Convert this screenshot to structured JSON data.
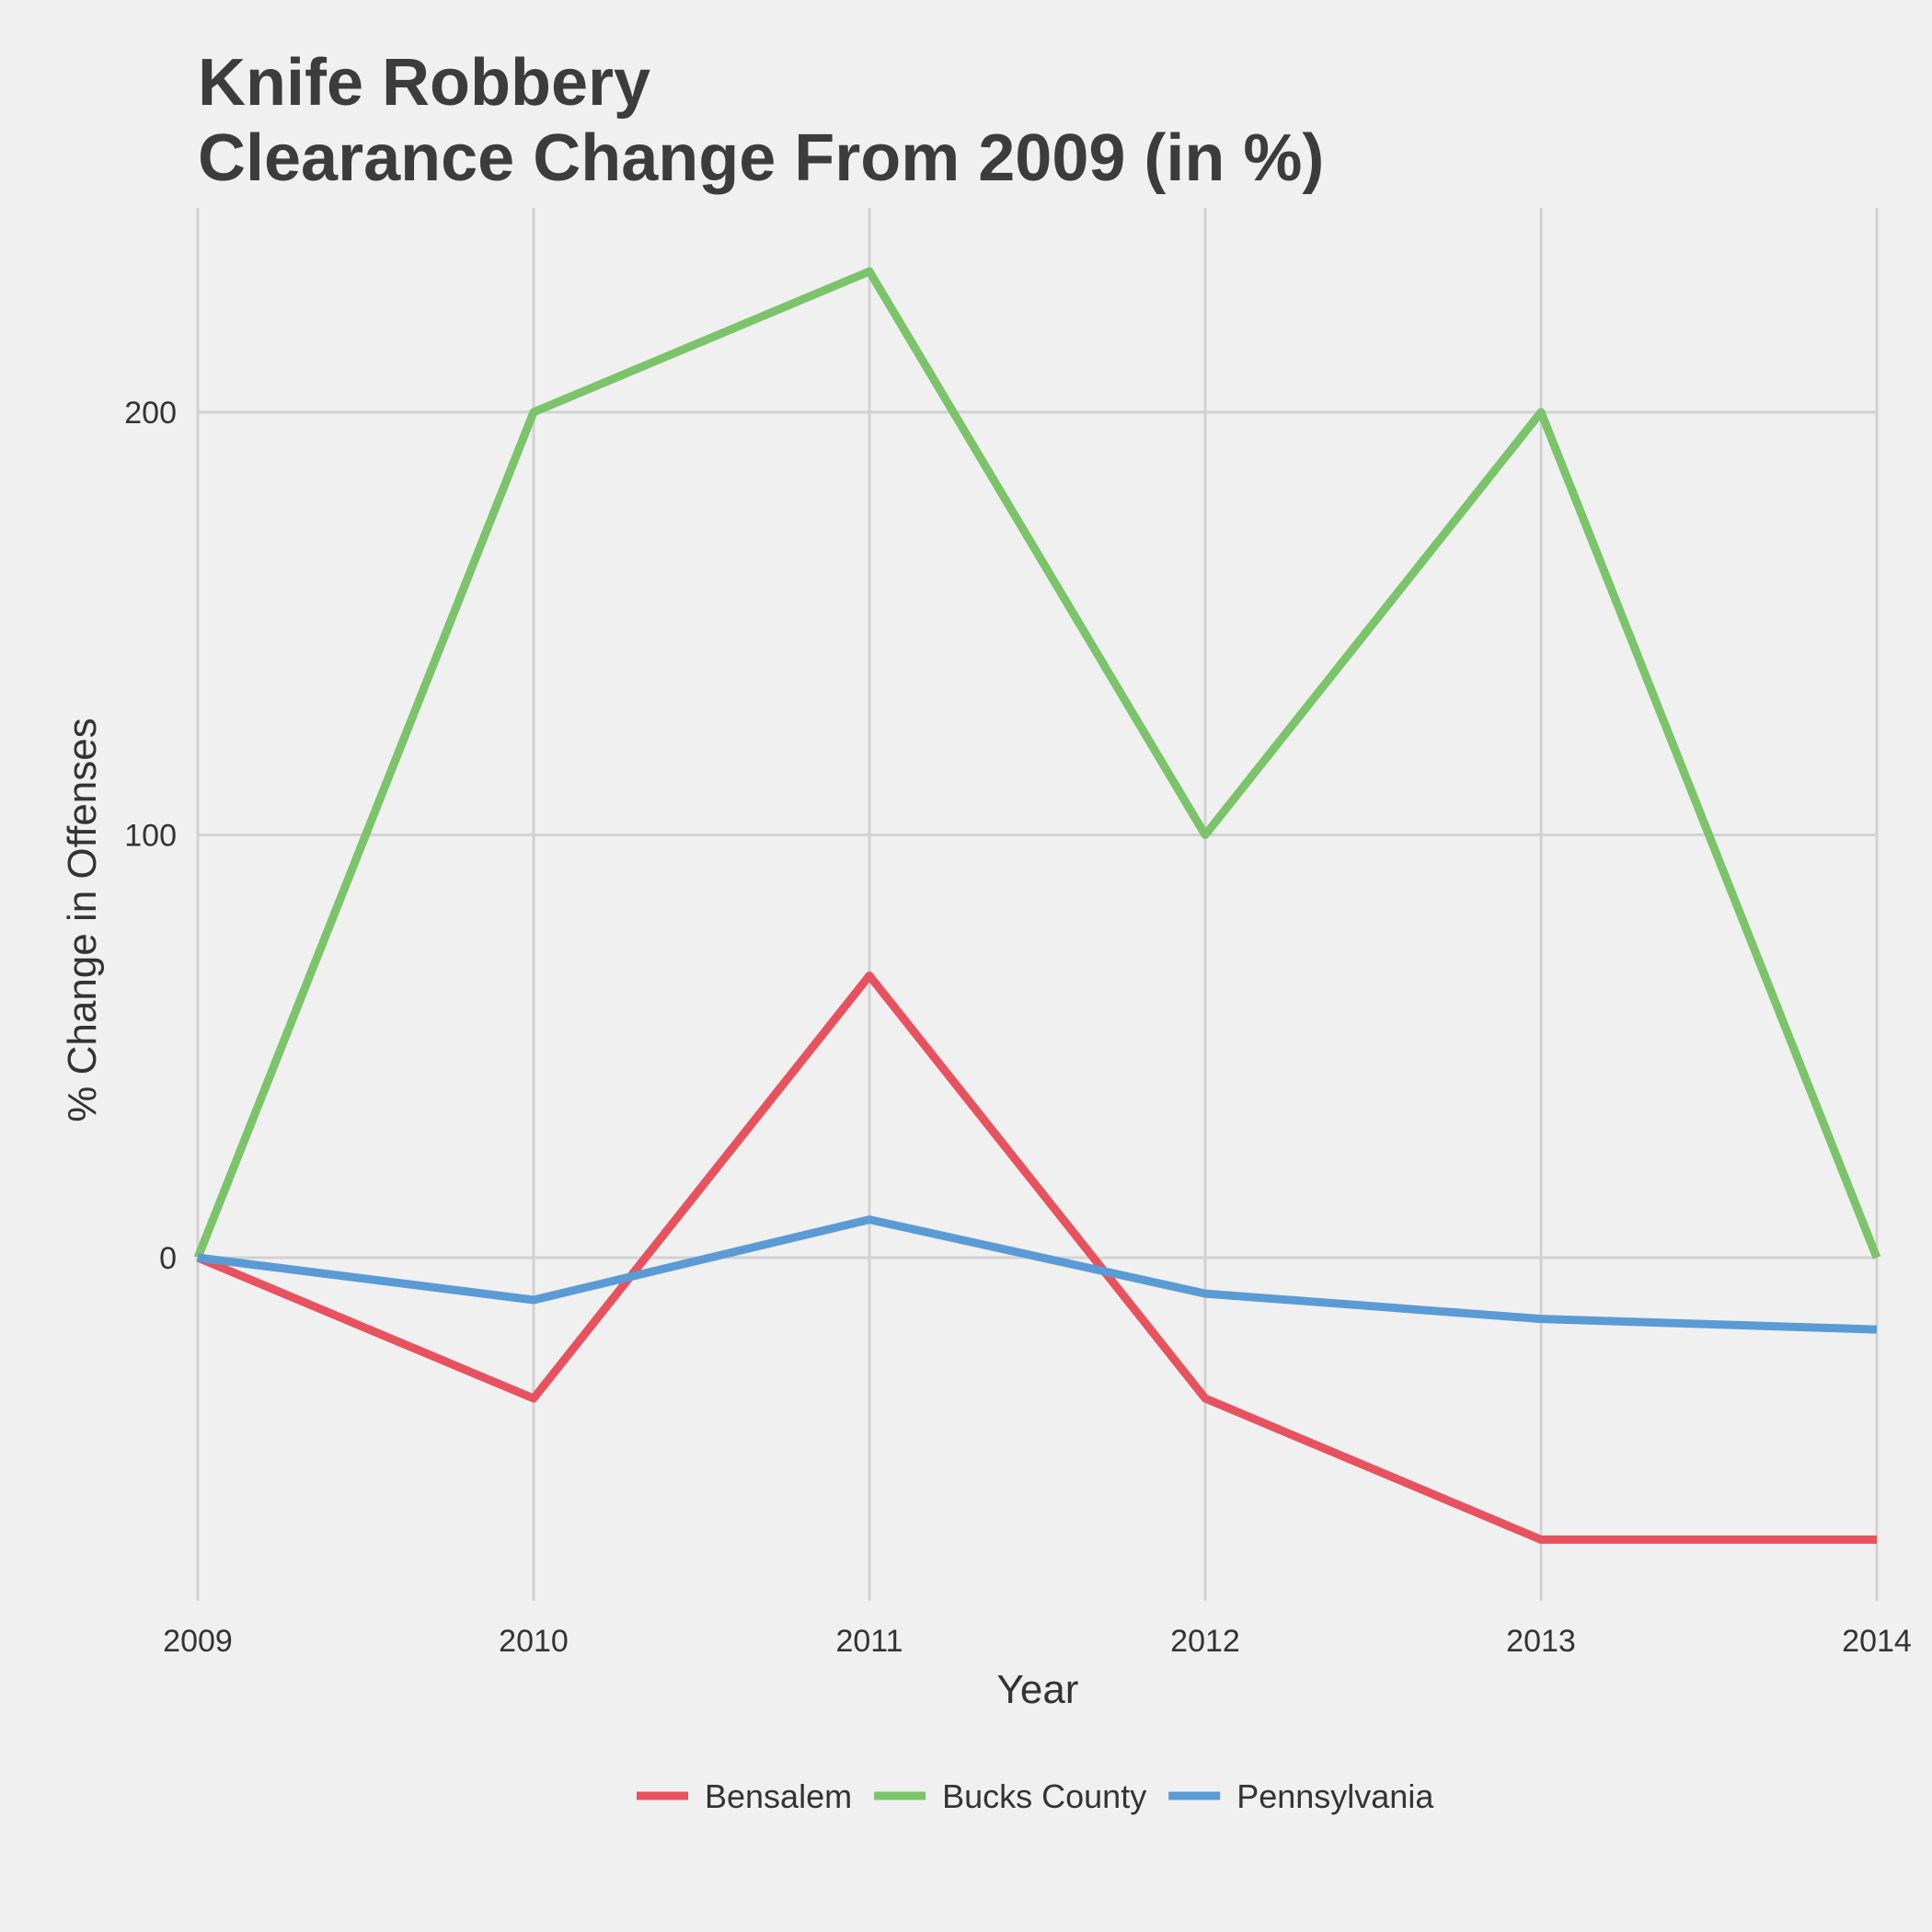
{
  "chart_data": {
    "type": "line",
    "title": [
      "Knife Robbery",
      "Clearance Change From 2009 (in %)"
    ],
    "xlabel": "Year",
    "ylabel": "% Change in Offenses",
    "x": [
      2009,
      2010,
      2011,
      2012,
      2013,
      2014
    ],
    "x_tick_labels": [
      "2009",
      "2010",
      "2011",
      "2012",
      "2013",
      "2014"
    ],
    "y_ticks": [
      0,
      100,
      200
    ],
    "y_tick_labels": [
      "0",
      "100",
      "200"
    ],
    "xlim": [
      2009,
      2014
    ],
    "ylim": [
      -80,
      250
    ],
    "grid": true,
    "legend_position": "bottom",
    "series": [
      {
        "name": "Bensalem",
        "color": "#e8525f",
        "values": [
          0,
          -33.3,
          66.7,
          -33.3,
          -66.7,
          -66.7
        ]
      },
      {
        "name": "Bucks County",
        "color": "#7bc46a",
        "values": [
          0,
          200,
          233.3,
          100,
          200,
          0
        ]
      },
      {
        "name": "Pennsylvania",
        "color": "#5b9bd5",
        "values": [
          0,
          -10,
          9,
          -8.5,
          -14.5,
          -17
        ]
      }
    ]
  }
}
